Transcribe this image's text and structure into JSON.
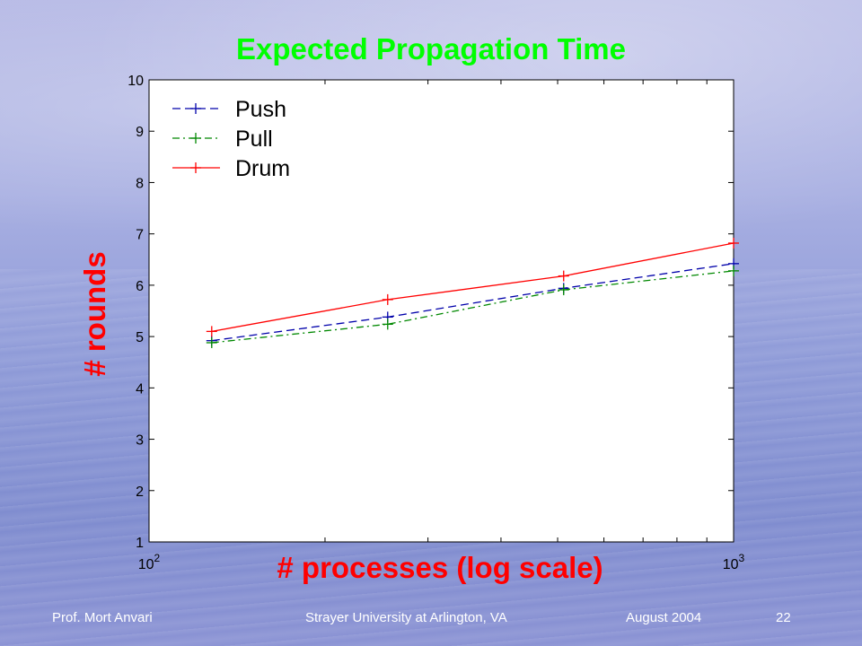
{
  "slide": {
    "footer_left": "Prof. Mort Anvari",
    "footer_center": "Strayer University at Arlington, VA",
    "footer_date": "August 2004",
    "page_number": "22"
  },
  "chart_data": {
    "type": "line",
    "title": "Expected Propagation Time",
    "xlabel": "# processes (log scale)",
    "ylabel": "# rounds",
    "x_scale": "log",
    "xlim": [
      100,
      1000
    ],
    "ylim": [
      1,
      10
    ],
    "y_ticks": [
      1,
      2,
      3,
      4,
      5,
      6,
      7,
      8,
      9,
      10
    ],
    "x_tick_labels": [
      {
        "base": "10",
        "exp": "2"
      },
      {
        "base": "10",
        "exp": "3"
      }
    ],
    "legend_position": "top-left",
    "grid": false,
    "x": [
      128,
      256,
      512,
      1000
    ],
    "series": [
      {
        "name": "Push",
        "values": [
          4.92,
          5.38,
          5.94,
          6.42
        ],
        "color": "#0000aa",
        "dash": "dashed"
      },
      {
        "name": "Pull",
        "values": [
          4.88,
          5.24,
          5.91,
          6.28
        ],
        "color": "#008800",
        "dash": "dashdot"
      },
      {
        "name": "Drum",
        "values": [
          5.1,
          5.72,
          6.18,
          6.82
        ],
        "color": "#ff0000",
        "dash": "solid"
      }
    ]
  }
}
